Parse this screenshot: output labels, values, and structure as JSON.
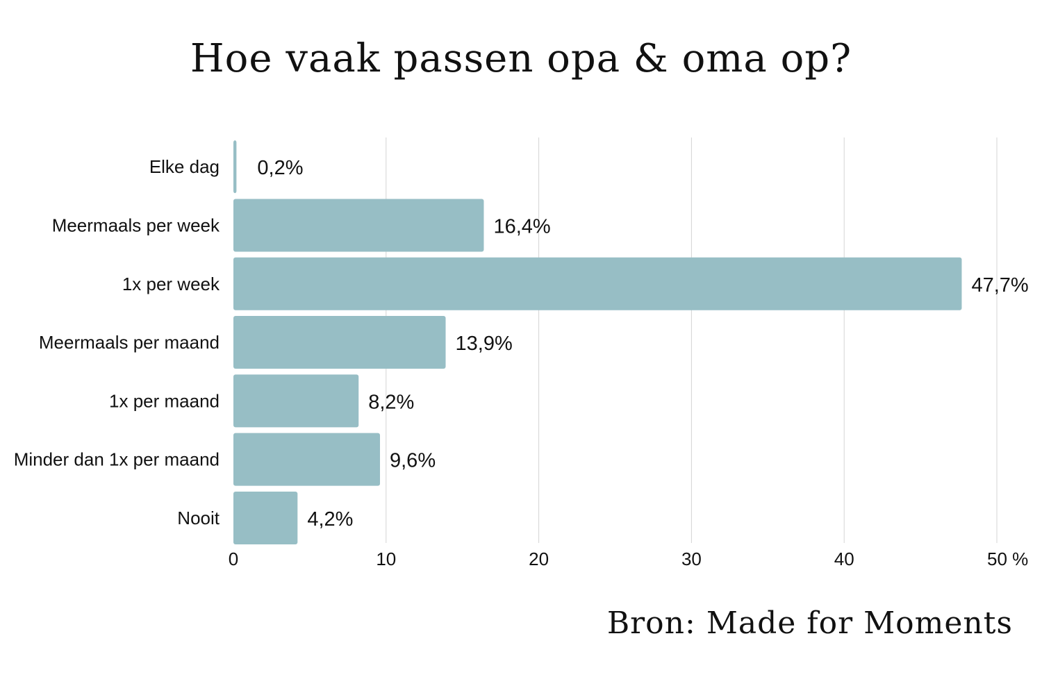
{
  "colors": {
    "bar": "#97bec5",
    "grid": "#d4d4d4",
    "text": "#111111",
    "background": "#ffffff"
  },
  "source": "Bron: Made for Moments",
  "chart_data": {
    "type": "bar",
    "orientation": "horizontal",
    "title": "Hoe vaak passen opa & oma op?",
    "xlabel": "",
    "ylabel": "",
    "categories": [
      "Elke dag",
      "Meermaals per week",
      "1x per week",
      "Meermaals per maand",
      "1x per maand",
      "Minder dan 1x per maand",
      "Nooit"
    ],
    "values": [
      0.2,
      16.4,
      47.7,
      13.9,
      8.2,
      9.6,
      4.2
    ],
    "value_labels": [
      "0,2%",
      "16,4%",
      "47,7%",
      "13,9%",
      "8,2%",
      "9,6%",
      "4,2%"
    ],
    "xlim": [
      0,
      50
    ],
    "xticks": [
      0,
      10,
      20,
      30,
      40,
      50
    ],
    "xtick_labels": [
      "0",
      "10",
      "20",
      "30",
      "40",
      "50 %"
    ],
    "grid": true,
    "legend": "none"
  }
}
